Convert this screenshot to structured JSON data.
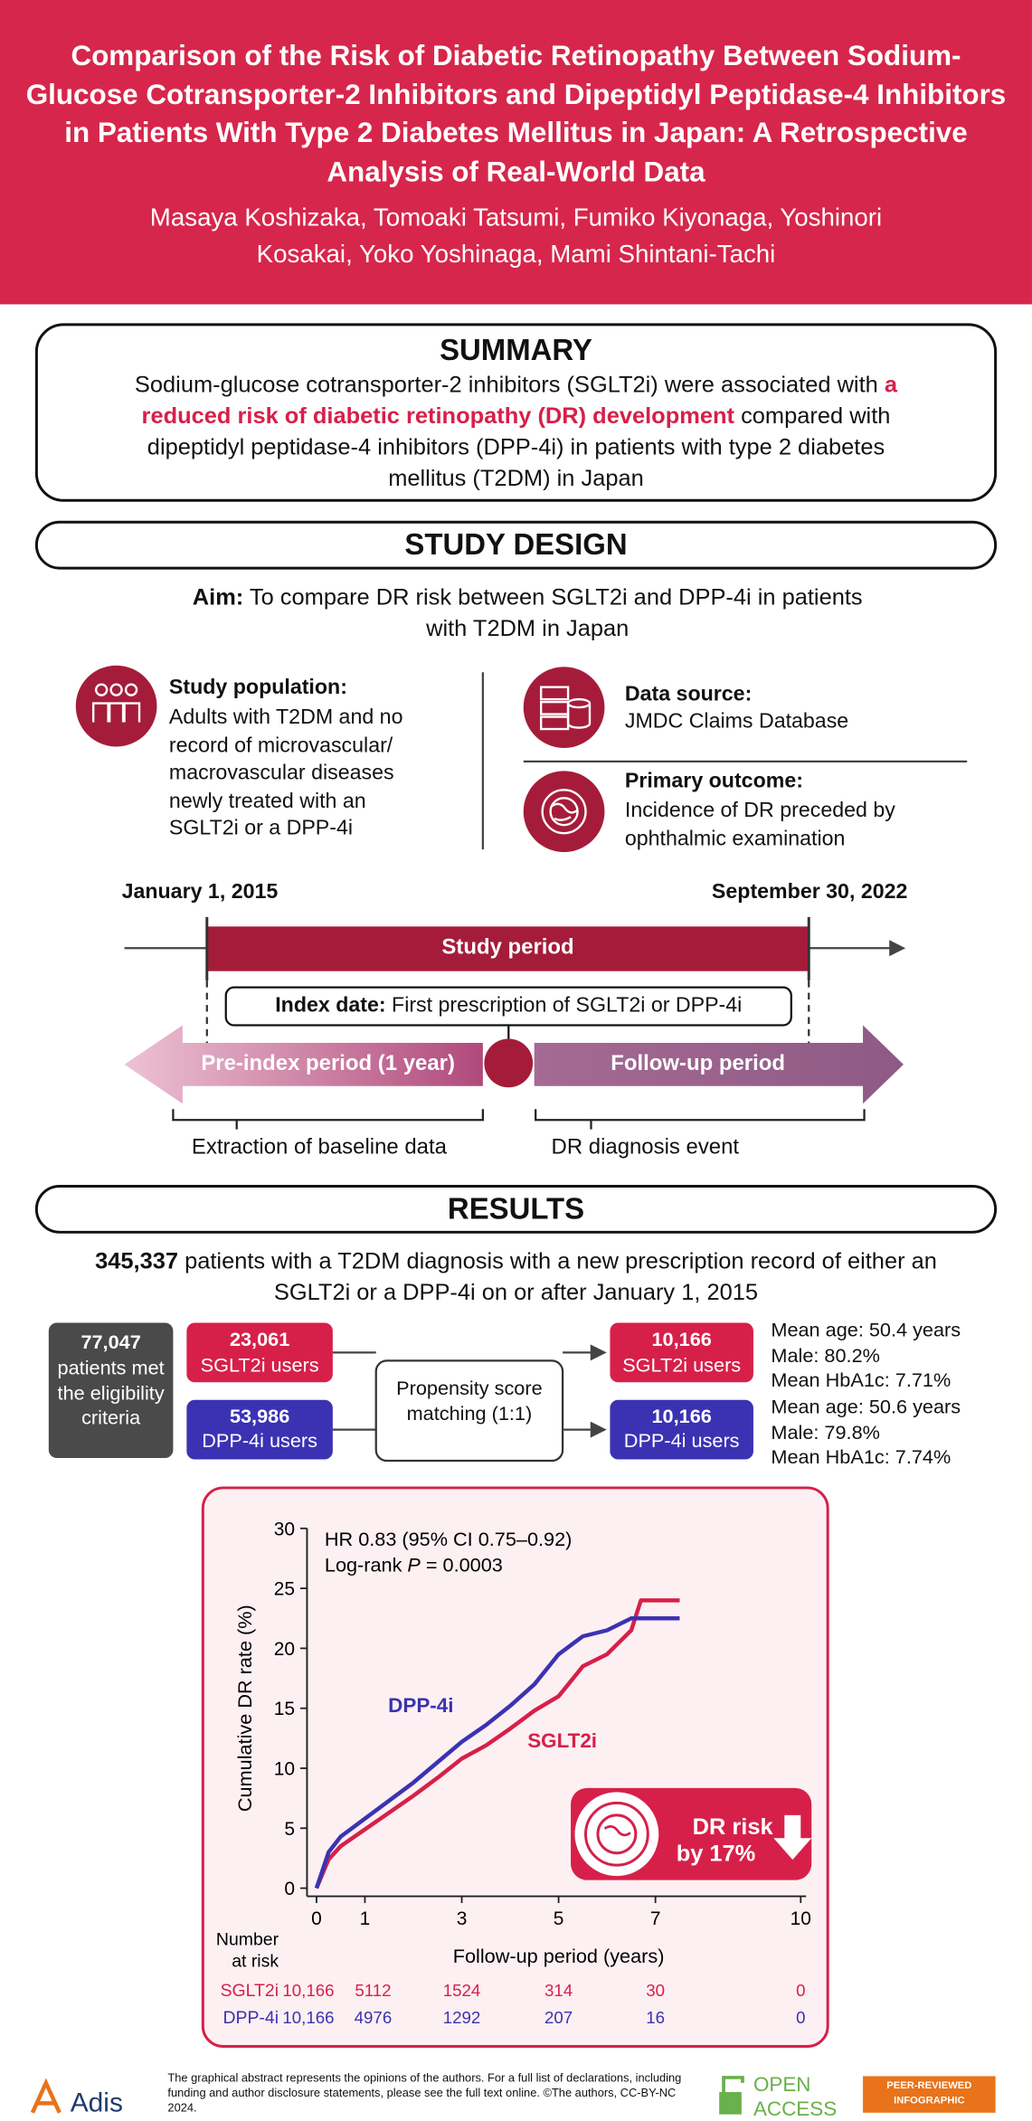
{
  "header": {
    "title": "Comparison of the Risk of Diabetic Retinopathy Between Sodium-Glucose Cotransporter-2 Inhibitors and Dipeptidyl Peptidase-4 Inhibitors in Patients With Type 2 Diabetes Mellitus in Japan: A Retrospective Analysis of Real-World Data",
    "authors": "Masaya Koshizaka, Tomoaki Tatsumi, Fumiko Kiyonaga, Yoshinori Kosakai, Yoko Yoshinaga, Mami Shintani-Tachi"
  },
  "summary": {
    "heading": "SUMMARY",
    "text_before": "Sodium-glucose cotransporter-2 inhibitors (SGLT2i) were associated with",
    "highlight": "a reduced risk of diabetic retinopathy (DR) development",
    "text_after": "compared with dipeptidyl peptidase-4 inhibitors (DPP-4i) in patients with type 2 diabetes mellitus (T2DM) in Japan"
  },
  "study_design": {
    "heading": "STUDY DESIGN",
    "aim_label": "Aim:",
    "aim_text": "To compare DR risk between SGLT2i and DPP-4i in patients with T2DM in Japan",
    "population": {
      "label": "Study population:",
      "text": "Adults with T2DM and no record of microvascular/ macrovascular diseases newly treated with an SGLT2i or a DPP-4i"
    },
    "data_source": {
      "label": "Data source:",
      "text": "JMDC Claims Database"
    },
    "primary_outcome": {
      "label": "Primary outcome:",
      "text": "Incidence of DR preceded by ophthalmic examination"
    },
    "timeline": {
      "start": "January 1, 2015",
      "end": "September 30, 2022",
      "study_period": "Study period",
      "index_label": "Index date:",
      "index_text": "First prescription of SGLT2i or DPP-4i",
      "pre_index": "Pre-index period (1 year)",
      "follow_up": "Follow-up period",
      "baseline": "Extraction of baseline data",
      "event": "DR diagnosis event"
    }
  },
  "results": {
    "heading": "RESULTS",
    "total": "345,337",
    "total_text": "patients with a T2DM diagnosis with a new prescription record of either an SGLT2i or a DPP-4i on or after January 1, 2015",
    "eligible_count": "77,047",
    "eligible_text": "patients met the eligibility criteria",
    "sglt2_count": "23,061",
    "sglt2_label": "SGLT2i users",
    "dpp4_count": "53,986",
    "dpp4_label": "DPP-4i users",
    "matching": "Propensity score matching (1:1)",
    "matched_sglt2_count": "10,166",
    "matched_sglt2_label": "SGLT2i users",
    "matched_dpp4_count": "10,166",
    "matched_dpp4_label": "DPP-4i users",
    "sglt2_stats": [
      "Mean age: 50.4 years",
      "Male: 80.2%",
      "Mean HbA1c: 7.71%"
    ],
    "dpp4_stats": [
      "Mean age: 50.6 years",
      "Male: 79.8%",
      "Mean HbA1c: 7.74%"
    ]
  },
  "chart_data": {
    "type": "line",
    "hr_text": "HR 0.83 (95% CI 0.75–0.92)",
    "logrank_label": "Log-rank",
    "p_symbol": "P",
    "p_text": "= 0.0003",
    "x_label": "Follow-up period (years)",
    "y_label": "Cumulative DR rate (%)",
    "xlim": [
      0,
      10
    ],
    "ylim": [
      0,
      30
    ],
    "xticks": [
      0,
      1,
      3,
      5,
      7,
      10
    ],
    "yticks": [
      0,
      5,
      10,
      15,
      20,
      25,
      30
    ],
    "x": [
      0,
      0.25,
      0.5,
      1,
      1.5,
      2,
      2.5,
      3,
      3.5,
      4,
      4.5,
      5,
      5.5,
      6,
      6.5,
      6.7,
      7,
      7.5
    ],
    "series": [
      {
        "name": "SGLT2i",
        "color": "#d6204a",
        "values": [
          0,
          2.4,
          3.5,
          4.9,
          6.3,
          7.7,
          9.2,
          10.8,
          11.9,
          13.3,
          14.8,
          16.0,
          18.5,
          19.5,
          21.5,
          24,
          24,
          24
        ]
      },
      {
        "name": "DPP-4i",
        "color": "#3b32b3",
        "values": [
          0,
          3,
          4.3,
          5.8,
          7.3,
          8.8,
          10.5,
          12.2,
          13.6,
          15.2,
          17.0,
          19.5,
          21,
          21.5,
          22.5,
          22.5,
          22.5,
          22.5
        ]
      }
    ],
    "badge_line1": "DR risk",
    "badge_line2": "by 17%",
    "risk_title": "Number at risk",
    "risk_rows": [
      {
        "name": "SGLT2i",
        "values": [
          "10,166",
          "5112",
          "1524",
          "314",
          "30",
          "0"
        ]
      },
      {
        "name": "DPP-4i",
        "values": [
          "10,166",
          "4976",
          "1292",
          "207",
          "16",
          "0"
        ]
      }
    ]
  },
  "footer": {
    "publisher": "Adis",
    "disclaimer": "The graphical abstract represents the opinions of the authors. For a full list of declarations, including funding and author disclosure statements, please see the full text online. ©The authors, CC-BY-NC 2024.",
    "open_access_1": "OPEN",
    "open_access_2": "ACCESS",
    "peer_reviewed": "PEER-REVIEWED INFOGRAPHIC"
  }
}
